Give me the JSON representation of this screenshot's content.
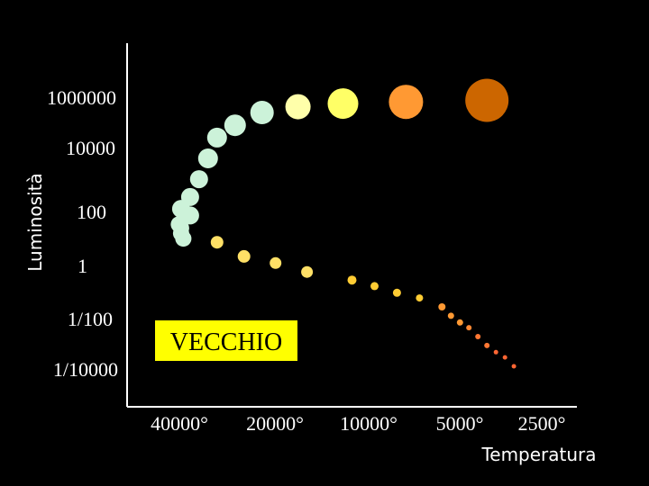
{
  "chart_data": {
    "type": "scatter",
    "title": "",
    "xlabel": "Temperatura",
    "ylabel": "Luminosità",
    "x_ticks": [
      "40000°",
      "20000°",
      "10000°",
      "5000°",
      "2500°"
    ],
    "y_ticks": [
      "1000000",
      "10000",
      "100",
      "1",
      "1/100",
      "1/10000"
    ],
    "annotation": "VECCHIO",
    "colors": {
      "background": "#000000",
      "axis": "#ffffff",
      "annotation_bg": "#ffff00"
    },
    "series": [
      {
        "points": [
          {
            "x": 12,
            "y": 30,
            "r": 9,
            "color": "#ccf2d9"
          },
          {
            "x": 11.5,
            "y": 60,
            "r": 9,
            "color": "#ccf2d9"
          },
          {
            "x": 14,
            "y": 120,
            "r": 10,
            "color": "#ccf2d9"
          },
          {
            "x": 12,
            "y": 45,
            "r": 9,
            "color": "#ccf2d9"
          },
          {
            "x": 12.5,
            "y": 20,
            "r": 9,
            "color": "#ccf2d9"
          },
          {
            "x": 12,
            "y": 200,
            "r": 10,
            "color": "#ccf2d9"
          },
          {
            "x": 14,
            "y": 500,
            "r": 10,
            "color": "#ccf2d9"
          },
          {
            "x": 16,
            "y": 2000,
            "r": 10,
            "color": "#ccf2d9"
          },
          {
            "x": 18,
            "y": 10000,
            "r": 11,
            "color": "#ccf2d9"
          },
          {
            "x": 20,
            "y": 50000,
            "r": 11,
            "color": "#ccf2d9"
          },
          {
            "x": 24,
            "y": 130000,
            "r": 12,
            "color": "#ccf2d9"
          },
          {
            "x": 30,
            "y": 350000,
            "r": 13,
            "color": "#ccf2d9"
          },
          {
            "x": 38,
            "y": 550000,
            "r": 14,
            "color": "#ffffaa"
          },
          {
            "x": 48,
            "y": 700000,
            "r": 17,
            "color": "#ffff66"
          },
          {
            "x": 62,
            "y": 800000,
            "r": 19,
            "color": "#ff9933"
          },
          {
            "x": 80,
            "y": 900000,
            "r": 24,
            "color": "#cc6600"
          },
          {
            "x": 20,
            "y": 15,
            "r": 7,
            "color": "#ffe066"
          },
          {
            "x": 26,
            "y": 5,
            "r": 7,
            "color": "#ffe066"
          },
          {
            "x": 33,
            "y": 3,
            "r": 6.5,
            "color": "#ffe066"
          },
          {
            "x": 40,
            "y": 1.5,
            "r": 6.5,
            "color": "#ffe066"
          },
          {
            "x": 50,
            "y": 0.8,
            "r": 5,
            "color": "#ffcc33"
          },
          {
            "x": 55,
            "y": 0.5,
            "r": 4.5,
            "color": "#ffcc33"
          },
          {
            "x": 60,
            "y": 0.3,
            "r": 4.5,
            "color": "#ffcc33"
          },
          {
            "x": 65,
            "y": 0.2,
            "r": 4,
            "color": "#ffcc33"
          },
          {
            "x": 70,
            "y": 0.1,
            "r": 4,
            "color": "#ff9933"
          },
          {
            "x": 72,
            "y": 0.05,
            "r": 3.5,
            "color": "#ff9933"
          },
          {
            "x": 74,
            "y": 0.03,
            "r": 3.5,
            "color": "#ff9933"
          },
          {
            "x": 76,
            "y": 0.02,
            "r": 3,
            "color": "#ff8833"
          },
          {
            "x": 78,
            "y": 0.01,
            "r": 3,
            "color": "#ff7733"
          },
          {
            "x": 80,
            "y": 0.005,
            "r": 3,
            "color": "#ff7733"
          },
          {
            "x": 82,
            "y": 0.003,
            "r": 2.5,
            "color": "#ff6633"
          },
          {
            "x": 84,
            "y": 0.002,
            "r": 2.5,
            "color": "#ff6633"
          },
          {
            "x": 86,
            "y": 0.001,
            "r": 2.5,
            "color": "#ff6633"
          }
        ]
      }
    ]
  }
}
